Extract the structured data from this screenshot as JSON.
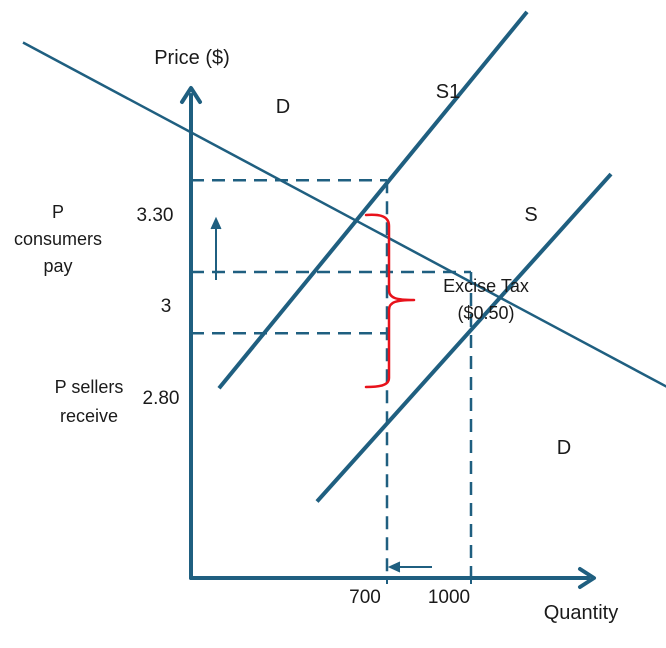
{
  "colors": {
    "axis": "#1f5f80",
    "curve": "#1f5f80",
    "guide": "#1f5f80",
    "brace": "#e8121b",
    "text": "#1a1a1a"
  },
  "chart_data": {
    "type": "line",
    "xlabel": "Quantity",
    "ylabel": "Price ($)",
    "xlim": [
      0,
      1500
    ],
    "ylim": [
      2.0,
      3.6
    ],
    "grid": false,
    "series": [
      {
        "name": "D",
        "x": [
          -600,
          1750
        ],
        "y": [
          3.75,
          2.6
        ]
      },
      {
        "name": "S",
        "x": [
          450,
          1500
        ],
        "y": [
          2.25,
          3.32
        ]
      },
      {
        "name": "S1",
        "x": [
          100,
          1200
        ],
        "y": [
          2.62,
          3.85
        ]
      }
    ],
    "x_ticks": [
      {
        "value": 700,
        "label": "700"
      },
      {
        "value": 1000,
        "label": "1000"
      }
    ],
    "y_ticks": [
      {
        "value": 3.3,
        "label": "3.30"
      },
      {
        "value": 3.0,
        "label": "3"
      },
      {
        "value": 2.8,
        "label": "2.80"
      }
    ],
    "price_labels": {
      "consumers": [
        "P",
        "consumers",
        "pay"
      ],
      "sellers": [
        "P sellers",
        "receive"
      ]
    },
    "annotations": {
      "tax_line1": "Excise Tax",
      "tax_line2": "($0.50)"
    }
  }
}
